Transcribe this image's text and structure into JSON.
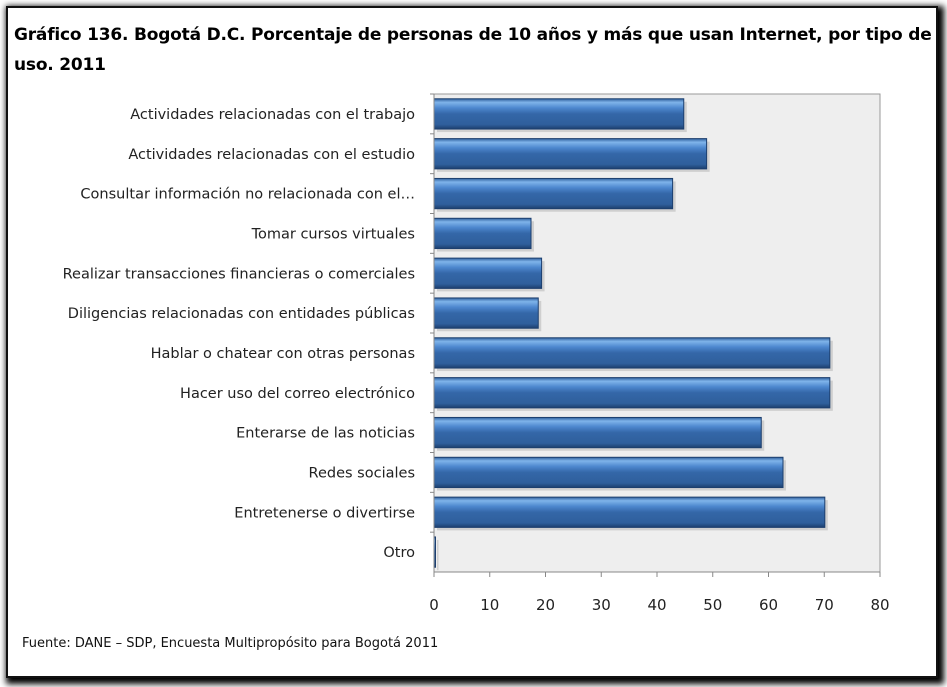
{
  "chart_data": {
    "type": "bar",
    "orientation": "horizontal",
    "title": "Gráfico 136.  Bogotá D.C. Porcentaje de personas de 10 años y más que usan Internet, por tipo de uso. 2011",
    "categories": [
      "Actividades relacionadas con el trabajo",
      "Actividades relacionadas con el estudio",
      "Consultar información no relacionada con el…",
      "Tomar cursos virtuales",
      "Realizar transacciones financieras o comerciales",
      "Diligencias relacionadas con entidades públicas",
      "Hablar o chatear con otras personas",
      "Hacer uso del correo electrónico",
      "Enterarse de las noticias",
      "Redes sociales",
      "Entretenerse o divertirse",
      "Otro"
    ],
    "values": [
      44.8,
      48.9,
      42.8,
      17.4,
      19.3,
      18.7,
      71.0,
      71.0,
      58.7,
      62.6,
      70.1,
      0.2
    ],
    "xlim": [
      0,
      80
    ],
    "xticks": [
      "0",
      "10",
      "20",
      "30",
      "40",
      "50",
      "60",
      "70",
      "80"
    ],
    "xlabel": "",
    "ylabel": "",
    "grid": false,
    "bar_color": "#3a6fb0",
    "plot_background": "#eeeeee"
  },
  "source": "Fuente: DANE – SDP, Encuesta Multipropósito para Bogotá 2011"
}
